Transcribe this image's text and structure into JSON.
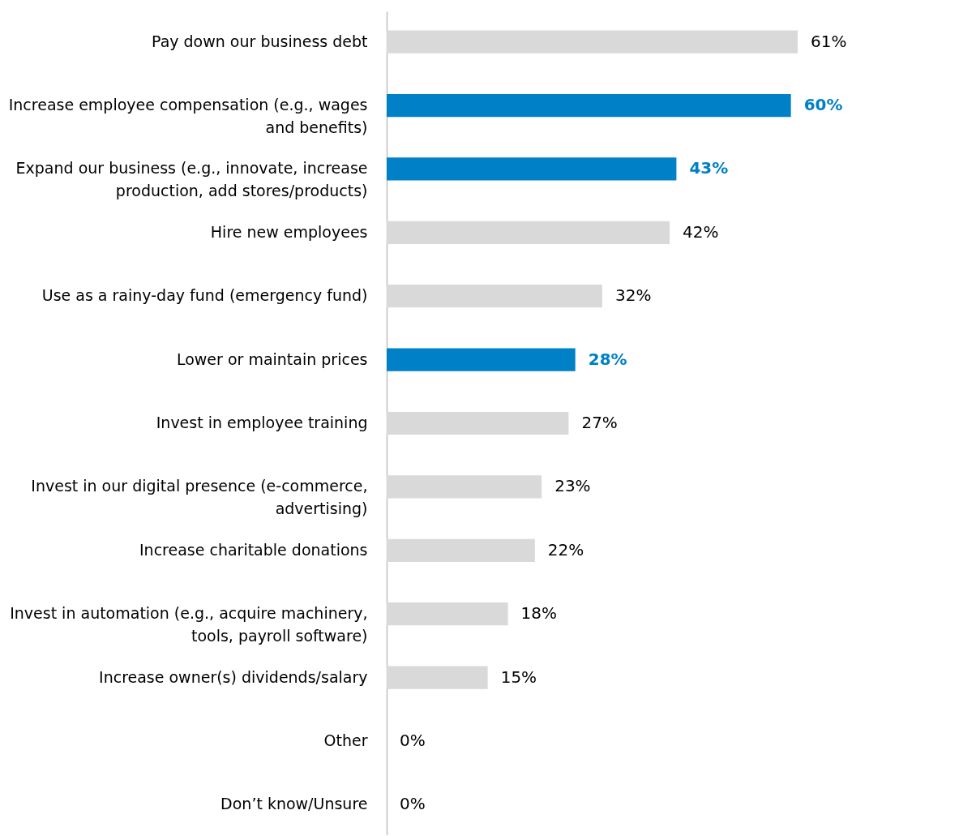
{
  "chart_data": {
    "type": "bar",
    "orientation": "horizontal",
    "categories": [
      "Pay down our business debt",
      "Increase employee compensation (e.g., wages and benefits)",
      "Expand our business (e.g., innovate, increase production, add stores/products)",
      "Hire new employees",
      "Use as a rainy-day fund (emergency fund)",
      "Lower or maintain prices",
      "Invest in employee training",
      "Invest in our digital presence (e-commerce, advertising)",
      "Increase charitable donations",
      "Invest in automation (e.g., acquire machinery, tools, payroll software)",
      "Increase owner(s) dividends/salary",
      "Other",
      "Don’t know/Unsure"
    ],
    "values": [
      61,
      60,
      43,
      42,
      32,
      28,
      27,
      23,
      22,
      18,
      15,
      0,
      0
    ],
    "colors": [
      "#d9d9d9",
      "#0080c6",
      "#0080c6",
      "#d9d9d9",
      "#d9d9d9",
      "#0080c6",
      "#d9d9d9",
      "#d9d9d9",
      "#d9d9d9",
      "#d9d9d9",
      "#d9d9d9",
      "#d9d9d9",
      "#d9d9d9"
    ],
    "value_labels": [
      "61%",
      "60%",
      "43%",
      "42%",
      "32%",
      "28%",
      "27%",
      "23%",
      "22%",
      "18%",
      "15%",
      "0%",
      "0%"
    ]
  }
}
